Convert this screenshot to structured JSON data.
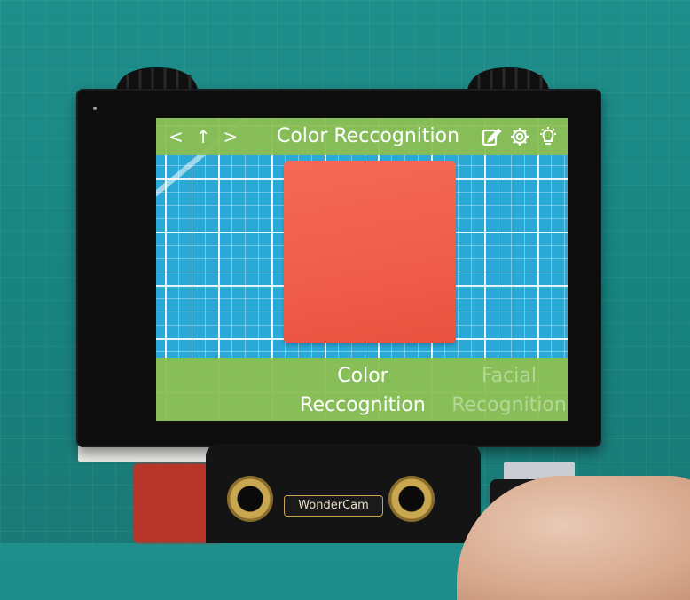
{
  "screen": {
    "nav": {
      "back_glyph": "<",
      "up_glyph": "↑",
      "forward_glyph": ">"
    },
    "title": "Color Reccognition",
    "tools": {
      "edit": "edit-icon",
      "settings": "gear-icon",
      "light": "lightbulb-icon"
    },
    "modes": {
      "active_line1": "Color",
      "active_line2": "Reccognition",
      "next_line1": "Facial",
      "next_line2": "Recognition"
    }
  },
  "device": {
    "brand_label": "WonderCam"
  },
  "colors": {
    "bar_green": "#8bbe52",
    "grid_blue": "#2aa9d6",
    "block_red": "#ef5d4a",
    "backdrop_teal": "#1a8a86"
  }
}
